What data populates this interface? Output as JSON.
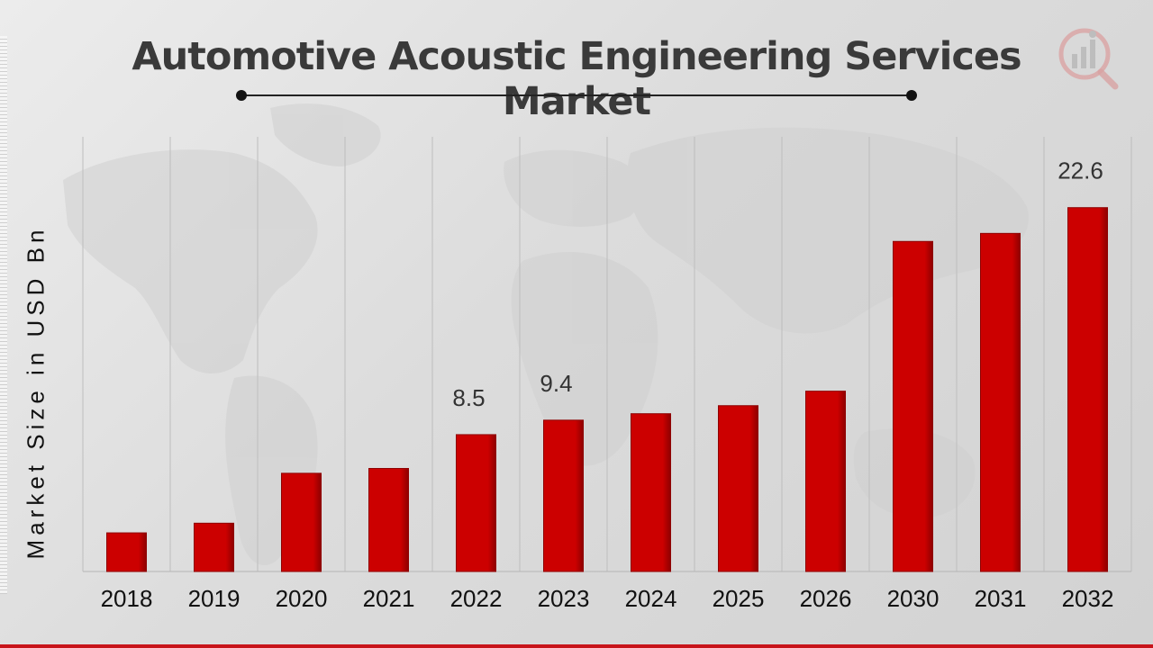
{
  "title": "Automotive Acoustic Engineering Services Market",
  "colors": {
    "bar": "#cc0000",
    "bar_dark": "#8e0000",
    "title": "#3a3a3a",
    "accent": "#c8141a"
  },
  "logo": {
    "icon": "market-research-logo-icon"
  },
  "chart_data": {
    "type": "bar",
    "title": "Automotive Acoustic Engineering Services Market",
    "xlabel": "",
    "ylabel": "Market Size in USD Bn",
    "categories": [
      "2018",
      "2019",
      "2020",
      "2021",
      "2022",
      "2023",
      "2024",
      "2025",
      "2026",
      "2030",
      "2031",
      "2032"
    ],
    "values": [
      2.4,
      3.0,
      6.1,
      6.4,
      8.5,
      9.4,
      9.8,
      10.3,
      11.2,
      20.5,
      21.0,
      22.6
    ],
    "data_labels": [
      {
        "category": "2022",
        "text": "8.5"
      },
      {
        "category": "2023",
        "text": "9.4"
      },
      {
        "category": "2032",
        "text": "22.6"
      }
    ],
    "grid": {
      "vertical": true,
      "horizontal": false
    },
    "legend": "none"
  }
}
